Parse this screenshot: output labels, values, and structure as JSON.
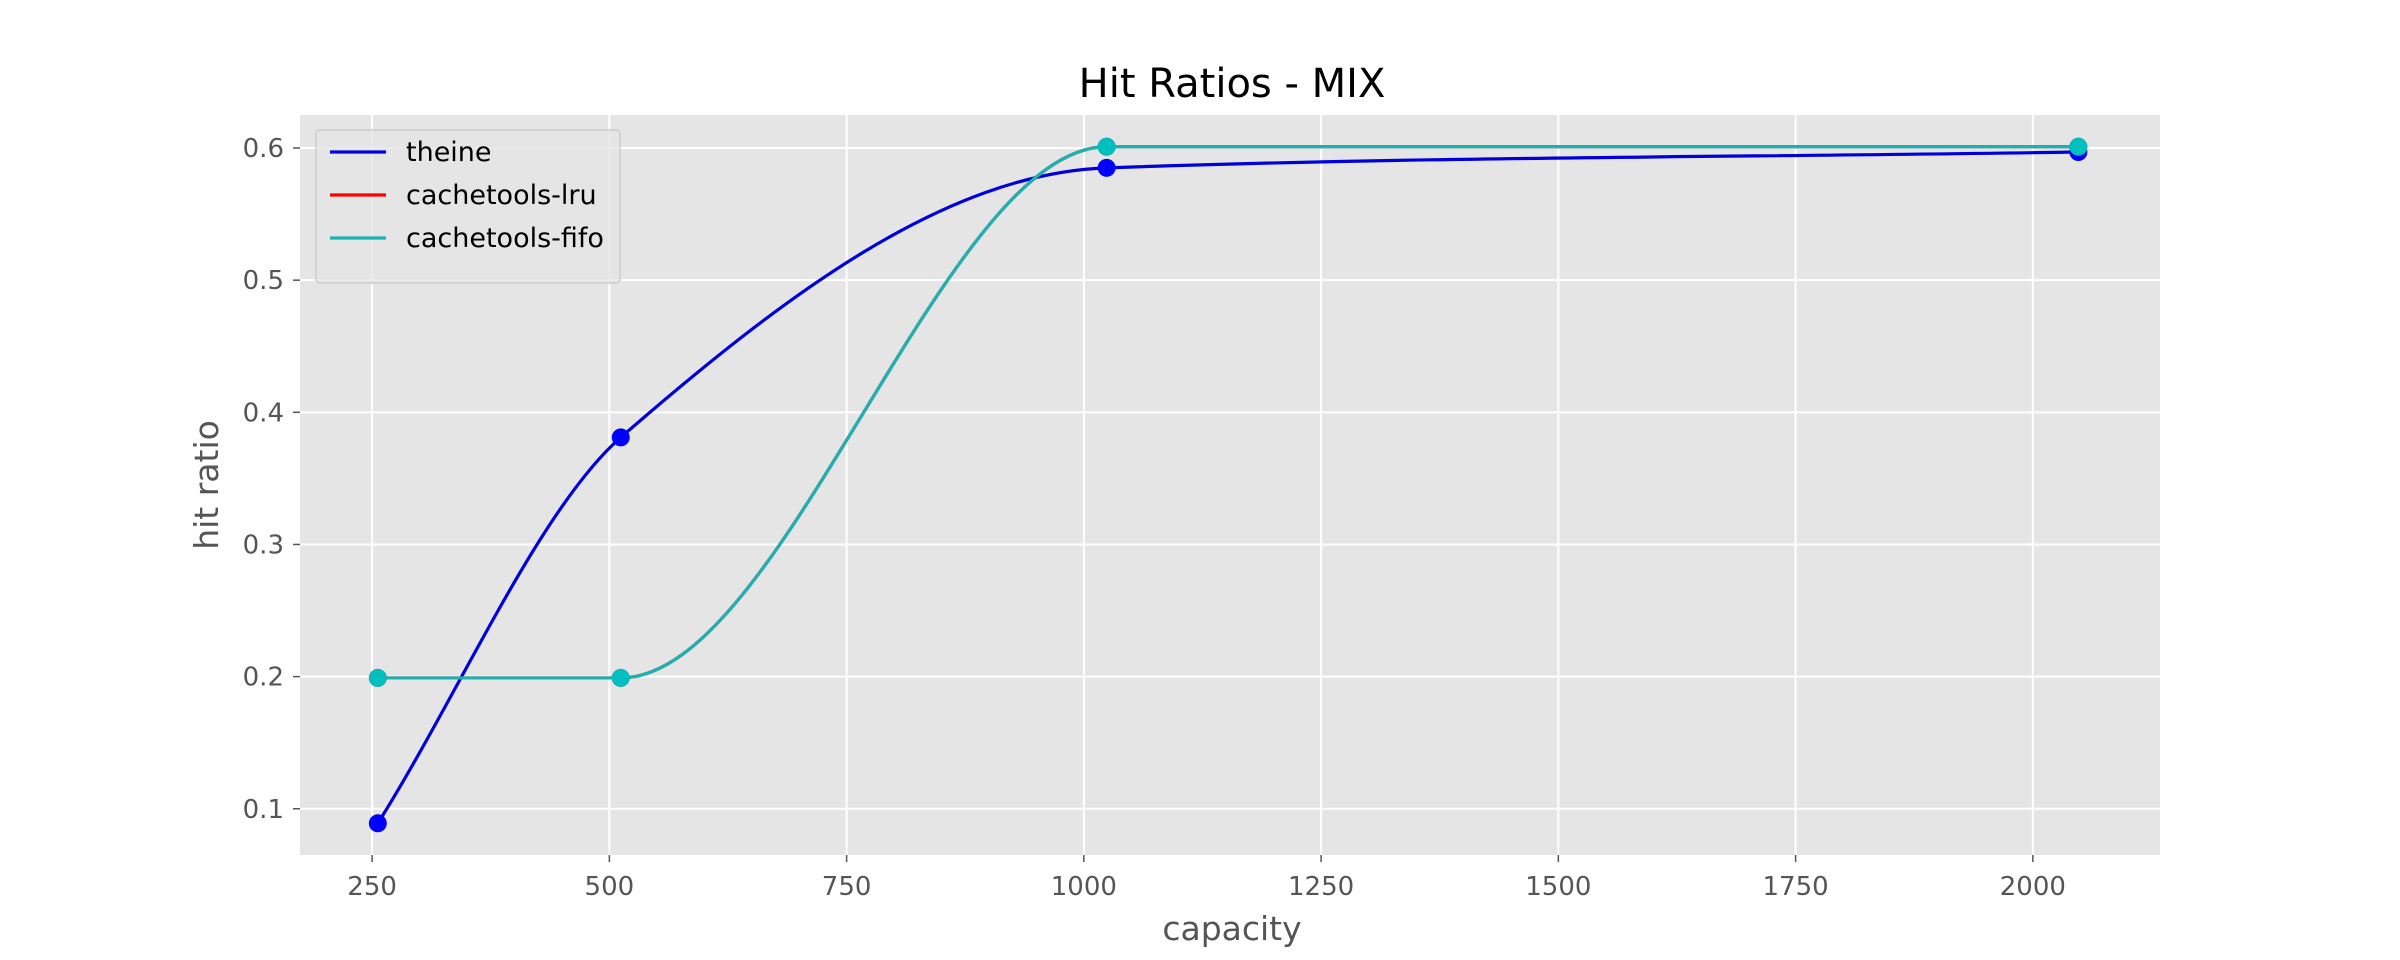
{
  "chart_data": {
    "type": "line",
    "title": "Hit Ratios - MIX",
    "xlabel": "capacity",
    "ylabel": "hit ratio",
    "xlim": [
      174,
      2134
    ],
    "ylim": [
      0.065,
      0.625
    ],
    "xticks": [
      250,
      500,
      750,
      1000,
      1250,
      1500,
      1750,
      2000
    ],
    "yticks": [
      0.1,
      0.2,
      0.3,
      0.4,
      0.5,
      0.6
    ],
    "ytick_labels": [
      "0.1",
      "0.2",
      "0.3",
      "0.4",
      "0.5",
      "0.6"
    ],
    "grid": true,
    "legend_position": "top-left",
    "x": [
      256,
      512,
      1024,
      2048
    ],
    "series": [
      {
        "name": "theine",
        "color": "#0000dd",
        "marker_color": "#0000ff",
        "values": [
          0.089,
          0.381,
          0.585,
          0.597
        ]
      },
      {
        "name": "cachetools-lru",
        "color": "#ff0000",
        "marker_color": "#ff0000",
        "values": [
          0.199,
          0.199,
          0.601,
          0.601
        ]
      },
      {
        "name": "cachetools-fifo",
        "color": "#1ab2b2",
        "marker_color": "#00bfbf",
        "values": [
          0.199,
          0.199,
          0.601,
          0.601
        ]
      }
    ]
  }
}
